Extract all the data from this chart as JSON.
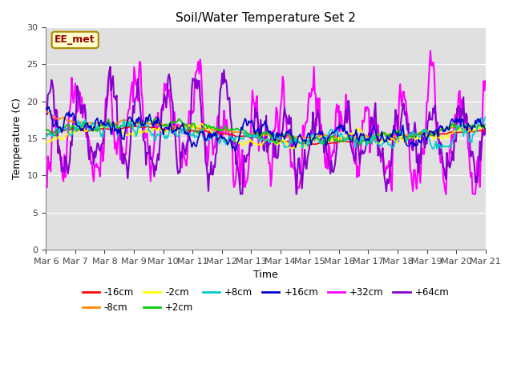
{
  "title": "Soil/Water Temperature Set 2",
  "xlabel": "Time",
  "ylabel": "Temperature (C)",
  "ylim": [
    0,
    30
  ],
  "yticks": [
    0,
    5,
    10,
    15,
    20,
    25,
    30
  ],
  "x_labels": [
    "Mar 6",
    "Mar 7",
    "Mar 8",
    "Mar 9",
    "Mar 10",
    "Mar 11",
    "Mar 12",
    "Mar 13",
    "Mar 14",
    "Mar 15",
    "Mar 16",
    "Mar 17",
    "Mar 18",
    "Mar 19",
    "Mar 20",
    "Mar 21"
  ],
  "series": [
    {
      "label": "-16cm",
      "color": "#ff0000"
    },
    {
      "label": "-8cm",
      "color": "#ff8800"
    },
    {
      "label": "-2cm",
      "color": "#ffff00"
    },
    {
      "label": "+2cm",
      "color": "#00cc00"
    },
    {
      "label": "+8cm",
      "color": "#00cccc"
    },
    {
      "label": "+16cm",
      "color": "#0000cc"
    },
    {
      "label": "+32cm",
      "color": "#ff00ff"
    },
    {
      "label": "+64cm",
      "color": "#8800cc"
    }
  ],
  "annotation_text": "EE_met",
  "annotation_color": "#990000",
  "annotation_bg": "#ffffcc",
  "background_color": "#e0e0e0",
  "fig_bg": "#ffffff",
  "n_points": 480,
  "figsize": [
    6.4,
    4.8
  ],
  "dpi": 100
}
